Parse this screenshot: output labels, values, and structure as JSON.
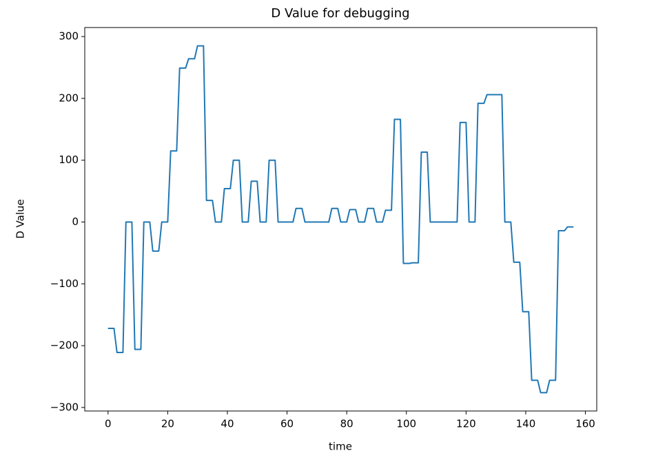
{
  "chart_data": {
    "type": "line",
    "title": "D Value for debugging",
    "x_label": "time",
    "y_label": "D Value",
    "x": [
      0,
      1,
      2,
      3,
      4,
      5,
      6,
      7,
      8,
      9,
      10,
      11,
      12,
      13,
      14,
      15,
      16,
      17,
      18,
      19,
      20,
      21,
      22,
      23,
      24,
      25,
      26,
      27,
      28,
      29,
      30,
      31,
      32,
      33,
      34,
      35,
      36,
      37,
      38,
      39,
      40,
      41,
      42,
      43,
      44,
      45,
      46,
      47,
      48,
      49,
      50,
      51,
      52,
      53,
      54,
      55,
      56,
      57,
      58,
      59,
      60,
      61,
      62,
      63,
      64,
      65,
      66,
      67,
      68,
      69,
      70,
      71,
      72,
      73,
      74,
      75,
      76,
      77,
      78,
      79,
      80,
      81,
      82,
      83,
      84,
      85,
      86,
      87,
      88,
      89,
      90,
      91,
      92,
      93,
      94,
      95,
      96,
      97,
      98,
      99,
      100,
      101,
      102,
      103,
      104,
      105,
      106,
      107,
      108,
      109,
      110,
      111,
      112,
      113,
      114,
      115,
      116,
      117,
      118,
      119,
      120,
      121,
      122,
      123,
      124,
      125,
      126,
      127,
      128,
      129,
      130,
      131,
      132,
      133,
      134,
      135,
      136,
      137,
      138,
      139,
      140,
      141,
      142,
      143,
      144,
      145,
      146,
      147,
      148,
      149,
      150,
      151,
      152,
      153,
      154,
      155,
      156
    ],
    "values": [
      -172,
      -172,
      -172,
      -211,
      -211,
      -211,
      0,
      0,
      0,
      -206,
      -206,
      -206,
      0,
      0,
      0,
      -47,
      -47,
      -47,
      0,
      0,
      0,
      115,
      115,
      115,
      249,
      249,
      249,
      264,
      264,
      264,
      285,
      285,
      285,
      35,
      35,
      35,
      0,
      0,
      0,
      54,
      54,
      54,
      100,
      100,
      100,
      0,
      0,
      0,
      66,
      66,
      66,
      0,
      0,
      0,
      100,
      100,
      100,
      0,
      0,
      0,
      0,
      0,
      0,
      22,
      22,
      22,
      0,
      0,
      0,
      0,
      0,
      0,
      0,
      0,
      0,
      22,
      22,
      22,
      0,
      0,
      0,
      20,
      20,
      20,
      0,
      0,
      0,
      22,
      22,
      22,
      0,
      0,
      0,
      19,
      19,
      19,
      166,
      166,
      166,
      -67,
      -67,
      -67,
      -66,
      -66,
      -66,
      113,
      113,
      113,
      0,
      0,
      0,
      0,
      0,
      0,
      0,
      0,
      0,
      0,
      161,
      161,
      161,
      0,
      0,
      0,
      192,
      192,
      192,
      206,
      206,
      206,
      206,
      206,
      206,
      0,
      0,
      0,
      -65,
      -65,
      -65,
      -145,
      -145,
      -145,
      -256,
      -256,
      -256,
      -276,
      -276,
      -276,
      -256,
      -256,
      -256,
      -14,
      -14,
      -14,
      -8,
      -8,
      -8
    ],
    "color": "#1f77b4",
    "xlim": [
      -7.8,
      163.8
    ],
    "ylim": [
      -305.7,
      314.6
    ],
    "xticks": [
      0,
      20,
      40,
      60,
      80,
      100,
      120,
      140,
      160
    ],
    "yticks": [
      {
        "value": -300,
        "label": "−300"
      },
      {
        "value": -200,
        "label": "−200"
      },
      {
        "value": -100,
        "label": "−100"
      },
      0,
      100,
      200,
      300
    ],
    "grid": false
  }
}
